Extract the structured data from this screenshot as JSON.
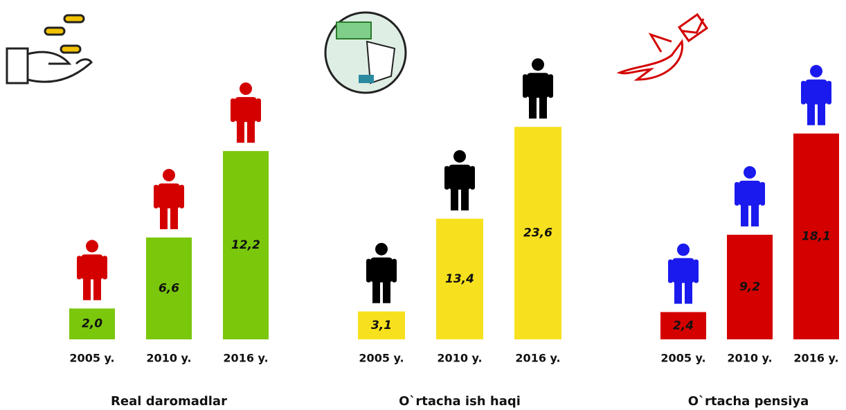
{
  "chart_data": [
    {
      "type": "bar",
      "title": "Real daromadlar",
      "categories": [
        "2005 y.",
        "2010 y.",
        "2016 y."
      ],
      "values": [
        2.0,
        6.6,
        12.2
      ],
      "value_labels": [
        "2,0",
        "6,6",
        "12,2"
      ],
      "color": "#7ac70c",
      "figure_color": "#d40000",
      "ylim": [
        0,
        14
      ]
    },
    {
      "type": "bar",
      "title": "O`rtacha ish haqi",
      "categories": [
        "2005 y.",
        "2010 y.",
        "2016 y."
      ],
      "values": [
        3.1,
        13.4,
        23.6
      ],
      "value_labels": [
        "3,1",
        "13,4",
        "23,6"
      ],
      "color": "#f7e11e",
      "figure_color": "#000000",
      "ylim": [
        0,
        24
      ]
    },
    {
      "type": "bar",
      "title": "O`rtacha pensiya",
      "categories": [
        "2005 y.",
        "2010 y.",
        "2016 y."
      ],
      "values": [
        2.4,
        9.2,
        18.1
      ],
      "value_labels": [
        "2,4",
        "9,2",
        "18,1"
      ],
      "color": "#d40000",
      "figure_color": "#1a1aee",
      "ylim": [
        0,
        19
      ]
    }
  ]
}
